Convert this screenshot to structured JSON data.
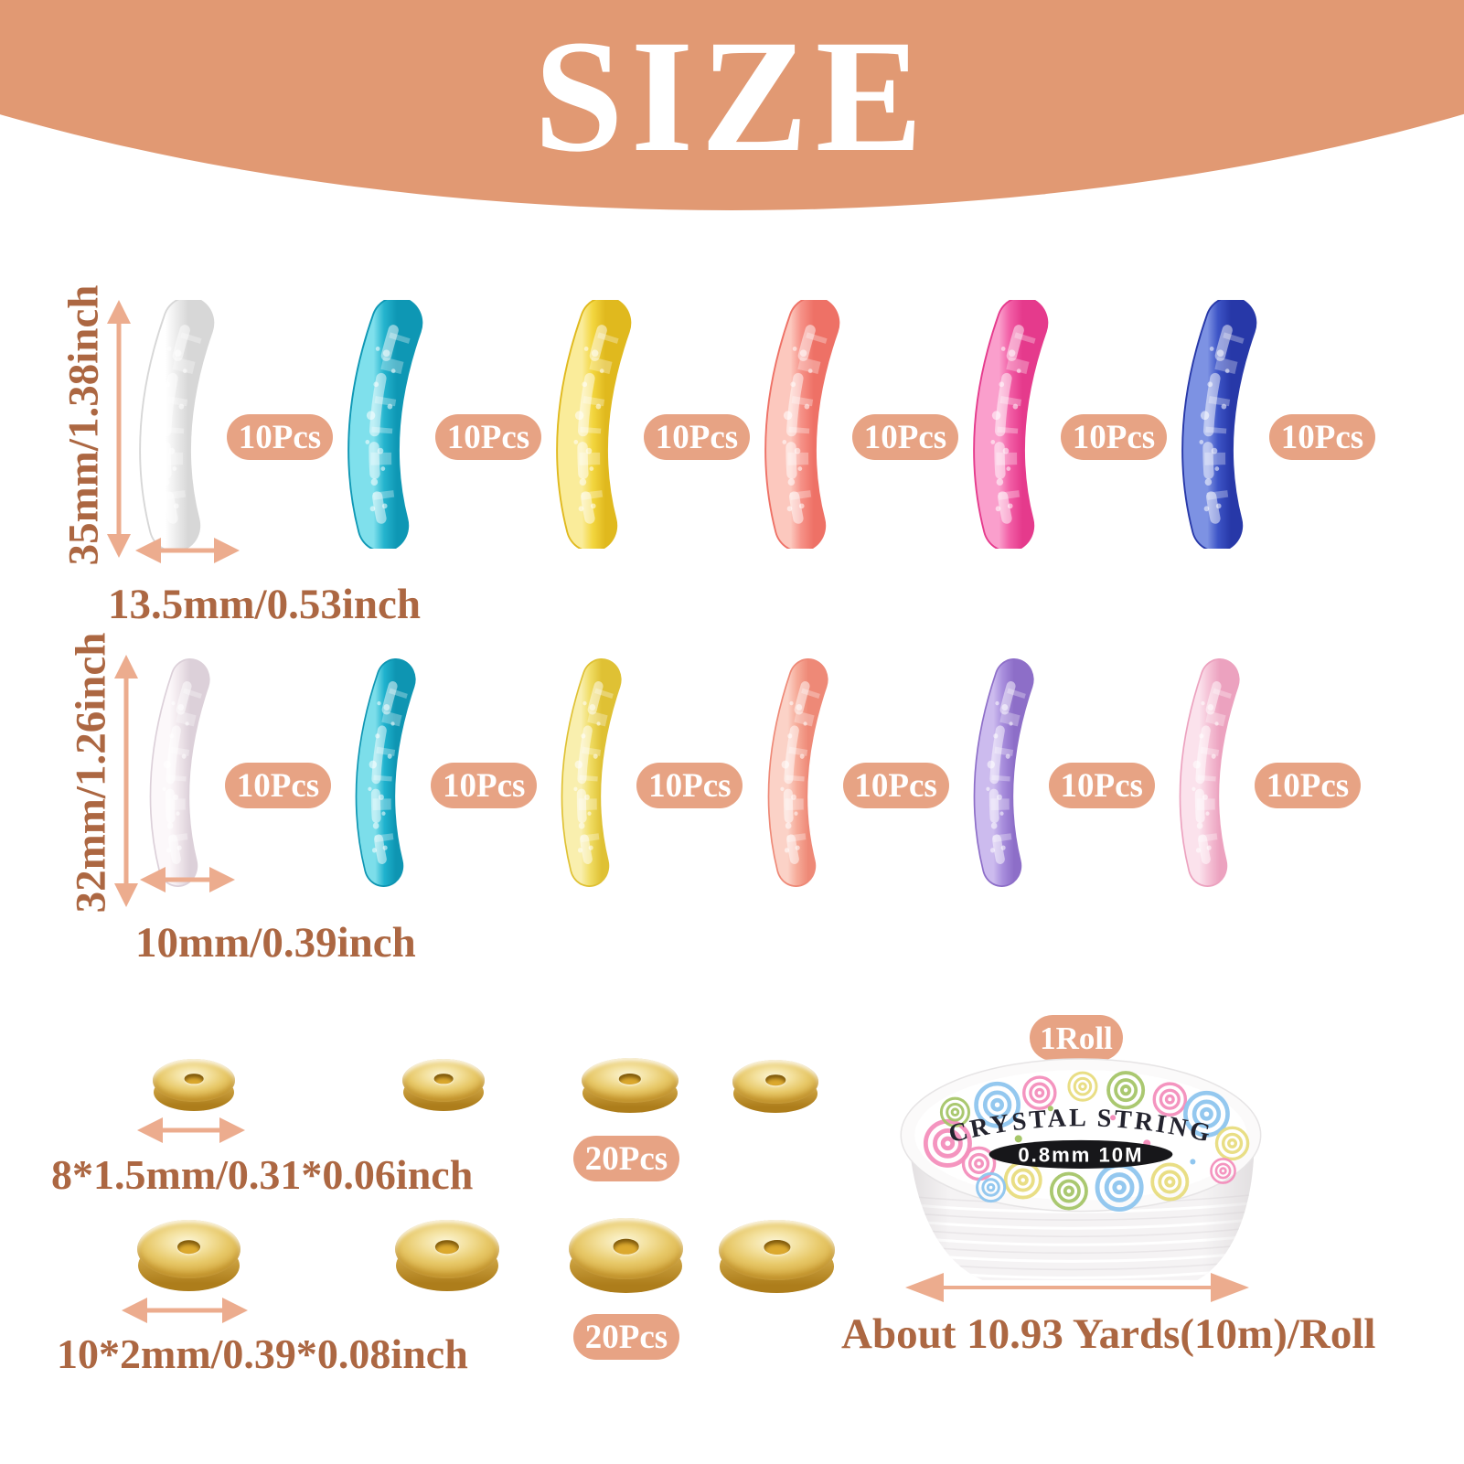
{
  "header": {
    "title": "SIZE",
    "banner_color": "#E19973"
  },
  "annotation": {
    "text_color": "#AC6742",
    "arrow_color": "#ECAC8E",
    "badge_color": "#E7A384"
  },
  "beads": {
    "count_label": "10Pcs",
    "row1": {
      "length_label": "35mm/1.38inch",
      "width_label": "13.5mm/0.53inch",
      "colors": [
        {
          "name": "clear",
          "base": "#EDEDED",
          "light": "#FFFFFF",
          "dark": "#D7D7D7"
        },
        {
          "name": "teal",
          "base": "#25B4CE",
          "light": "#7FE0EC",
          "dark": "#0E97B4"
        },
        {
          "name": "yellow",
          "base": "#F3D63F",
          "light": "#FAEC9A",
          "dark": "#E0B91E"
        },
        {
          "name": "coral",
          "base": "#F69288",
          "light": "#FCC8BE",
          "dark": "#EE7166"
        },
        {
          "name": "hot-pink",
          "base": "#F25FA6",
          "light": "#FA9FCC",
          "dark": "#E53A8C"
        },
        {
          "name": "royal-blue",
          "base": "#3D54C6",
          "light": "#7D92E3",
          "dark": "#2738A8"
        }
      ]
    },
    "row2": {
      "length_label": "32mm/1.26inch",
      "width_label": "10mm/0.39inch",
      "colors": [
        {
          "name": "clear-pink",
          "base": "#F0E7EC",
          "light": "#FCF8FA",
          "dark": "#DCD0D9"
        },
        {
          "name": "teal",
          "base": "#1FB2CE",
          "light": "#7CDEEA",
          "dark": "#0E95B2"
        },
        {
          "name": "light-yellow",
          "base": "#F0DC63",
          "light": "#F9EFAE",
          "dark": "#DFC134"
        },
        {
          "name": "peach",
          "base": "#F6AB99",
          "light": "#FBD2C7",
          "dark": "#EE8977"
        },
        {
          "name": "lavender",
          "base": "#A88EDD",
          "light": "#CCBBEE",
          "dark": "#8D6EC8"
        },
        {
          "name": "light-pink",
          "base": "#F5C3D7",
          "light": "#FBE2EC",
          "dark": "#ECA2BF"
        }
      ]
    }
  },
  "spacers": {
    "count_label": "20Pcs",
    "small": {
      "size_label": "8*1.5mm/0.31*0.06inch"
    },
    "large": {
      "size_label": "10*2mm/0.39*0.08inch"
    },
    "gold_light": "#F3E09C",
    "gold_dark": "#AD7D1B"
  },
  "string_roll": {
    "count_label": "1Roll",
    "label_title": "CRYSTAL STRING",
    "label_spec": "0.8mm 10M",
    "length_label": "About 10.93 Yards(10m)/Roll",
    "swirl_colors": [
      "#F48FBC",
      "#8FC6EF",
      "#E8DD7F",
      "#A6C669"
    ]
  }
}
